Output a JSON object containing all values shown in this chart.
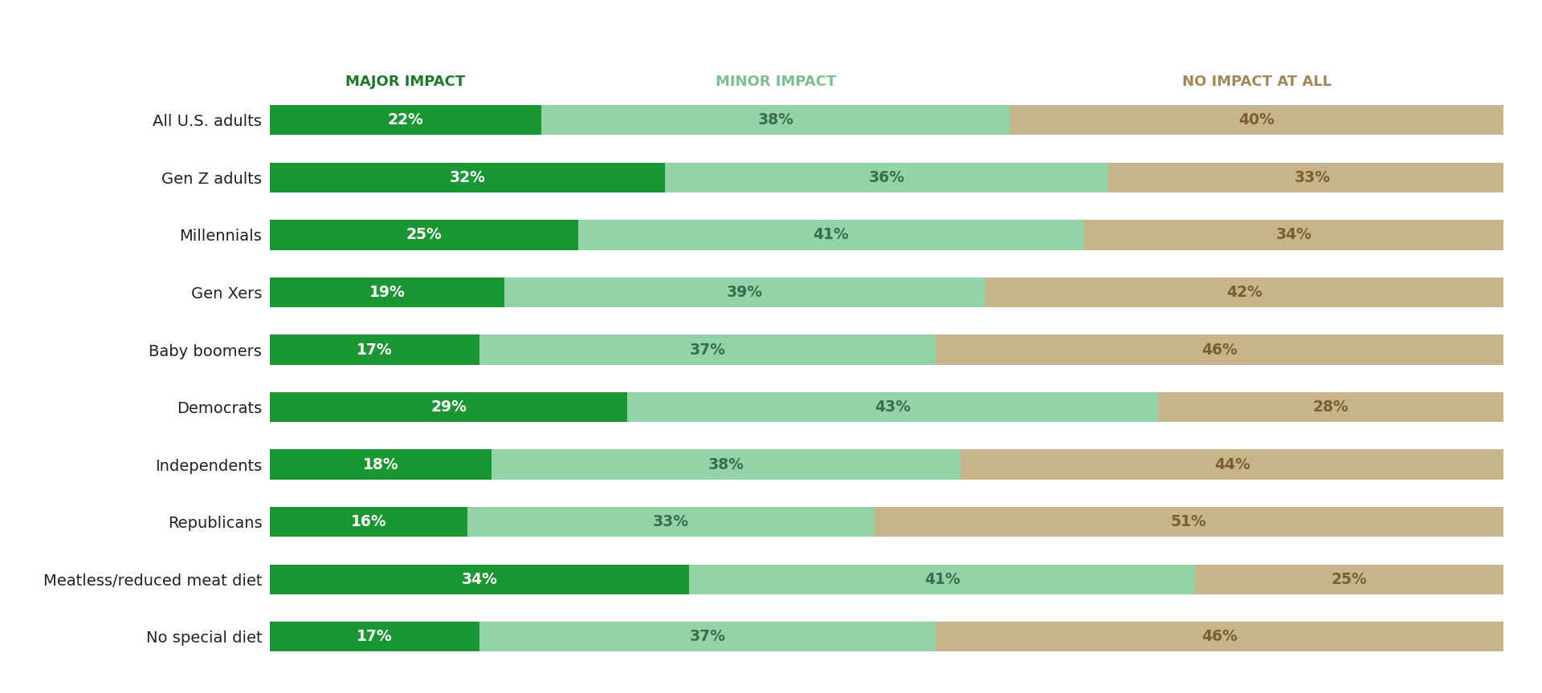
{
  "categories": [
    "All U.S. adults",
    "Gen Z adults",
    "Millennials",
    "Gen Xers",
    "Baby boomers",
    "Democrats",
    "Independents",
    "Republicans",
    "Meatless/reduced meat diet",
    "No special diet"
  ],
  "major_impact": [
    22,
    32,
    25,
    19,
    17,
    29,
    18,
    16,
    34,
    17
  ],
  "minor_impact": [
    38,
    36,
    41,
    39,
    37,
    43,
    38,
    33,
    41,
    37
  ],
  "no_impact": [
    40,
    33,
    34,
    42,
    46,
    28,
    44,
    51,
    25,
    46
  ],
  "color_major": "#1a9632",
  "color_minor": "#92d4a8",
  "color_no_impact": "#c8b48a",
  "label_major": "MAJOR IMPACT",
  "label_minor": "MINOR IMPACT",
  "label_no_impact": "NO IMPACT AT ALL",
  "header_color_major": "#1a7a2a",
  "header_color_minor": "#7abf90",
  "header_color_no_impact": "#a08858",
  "bar_height": 0.52,
  "background_color": "#ffffff",
  "pct_fontsize": 13.5,
  "header_fontsize": 13,
  "category_fontsize": 14,
  "text_color_minor": "#3a6e4a",
  "text_color_no_impact": "#7a6030"
}
